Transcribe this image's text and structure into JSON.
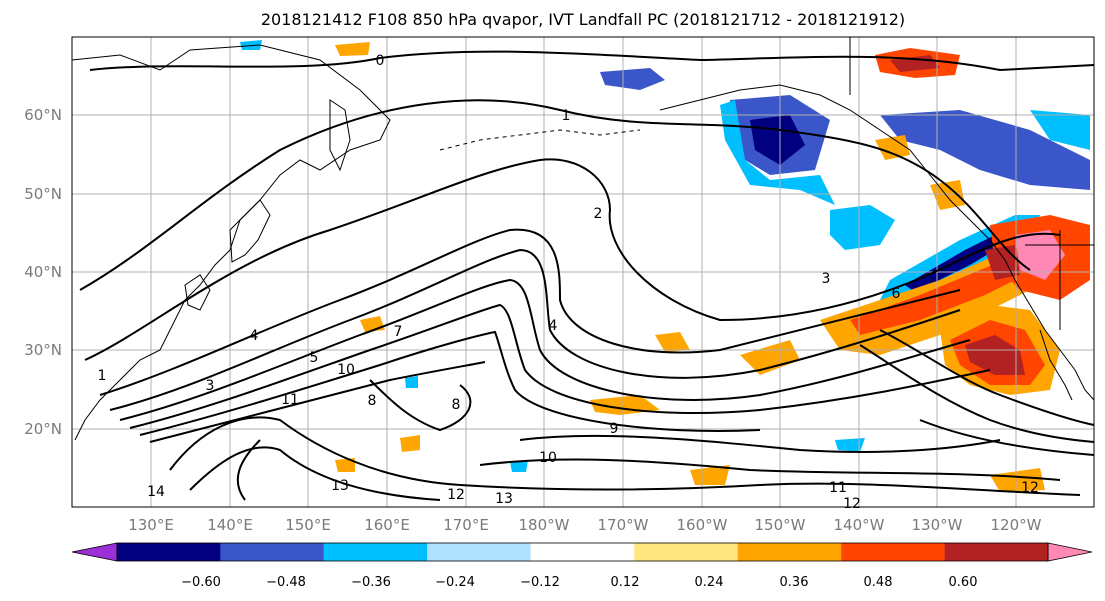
{
  "title": "2018121412 F108 850 hPa qvapor, IVT Landfall PC (2018121712 - 2018121912)",
  "lat_labels": [
    "60°N",
    "50°N",
    "40°N",
    "30°N",
    "20°N"
  ],
  "lon_labels": [
    "130°E",
    "140°E",
    "150°E",
    "160°E",
    "170°E",
    "180°W",
    "170°W",
    "160°W",
    "150°W",
    "140°W",
    "130°W",
    "120°W"
  ],
  "colorbar": {
    "ticks": [
      "−0.60",
      "−0.48",
      "−0.36",
      "−0.24",
      "−0.12",
      "0.12",
      "0.24",
      "0.36",
      "0.48",
      "0.60"
    ],
    "colors": [
      "#9b30d9",
      "#000080",
      "#3a56c8",
      "#00bfff",
      "#b0e2ff",
      "#ffffff",
      "#ffe680",
      "#ffa500",
      "#ff4500",
      "#b22222",
      "#ff88b5"
    ]
  },
  "contour_labels": [
    "0",
    "1",
    "1",
    "2",
    "3",
    "3",
    "4",
    "4",
    "5",
    "6",
    "7",
    "8",
    "8",
    "9",
    "10",
    "10",
    "11",
    "11",
    "12",
    "12",
    "12",
    "13",
    "13",
    "14"
  ]
}
